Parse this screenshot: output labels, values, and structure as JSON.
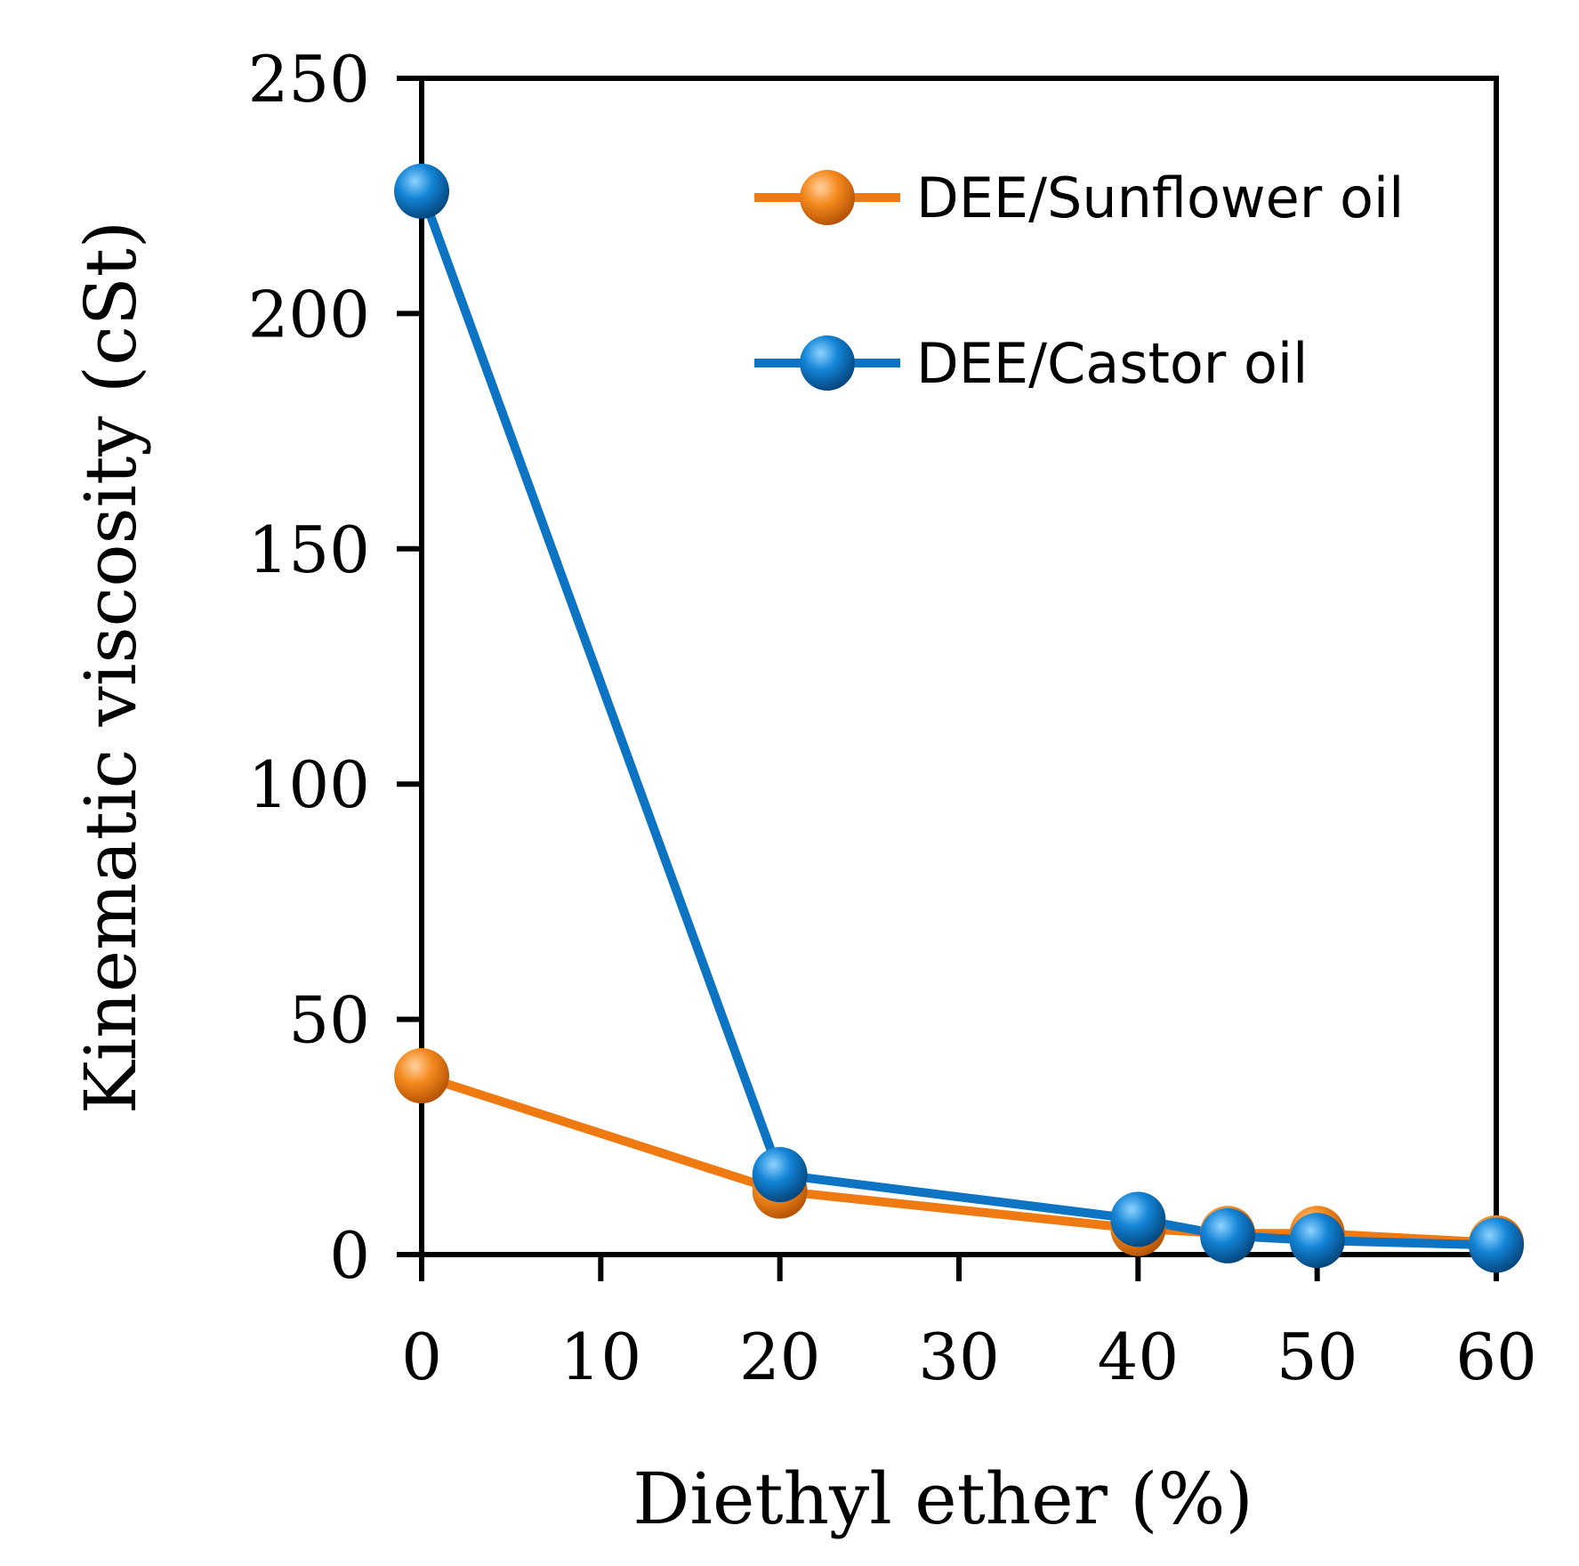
{
  "chart_data": {
    "type": "line",
    "title": "",
    "xlabel": "Diethyl ether (%)",
    "ylabel": "Kinematic viscosity (cSt)",
    "xlim": [
      0,
      60
    ],
    "ylim": [
      0,
      250
    ],
    "xticks": [
      0,
      10,
      20,
      30,
      40,
      50,
      60
    ],
    "yticks": [
      0,
      50,
      100,
      150,
      200,
      250
    ],
    "grid": false,
    "legend_position": "top-right",
    "series": [
      {
        "name": "DEE/Sunflower oil",
        "color": "#f07a12",
        "x": [
          0,
          20,
          40,
          45,
          50,
          60
        ],
        "y": [
          38,
          13.5,
          5.5,
          4.5,
          4.5,
          2.5
        ]
      },
      {
        "name": "DEE/Castor oil",
        "color": "#0c74c2",
        "x": [
          0,
          20,
          40,
          45,
          50,
          60
        ],
        "y": [
          226,
          17,
          7.5,
          4,
          3,
          2
        ]
      }
    ]
  }
}
